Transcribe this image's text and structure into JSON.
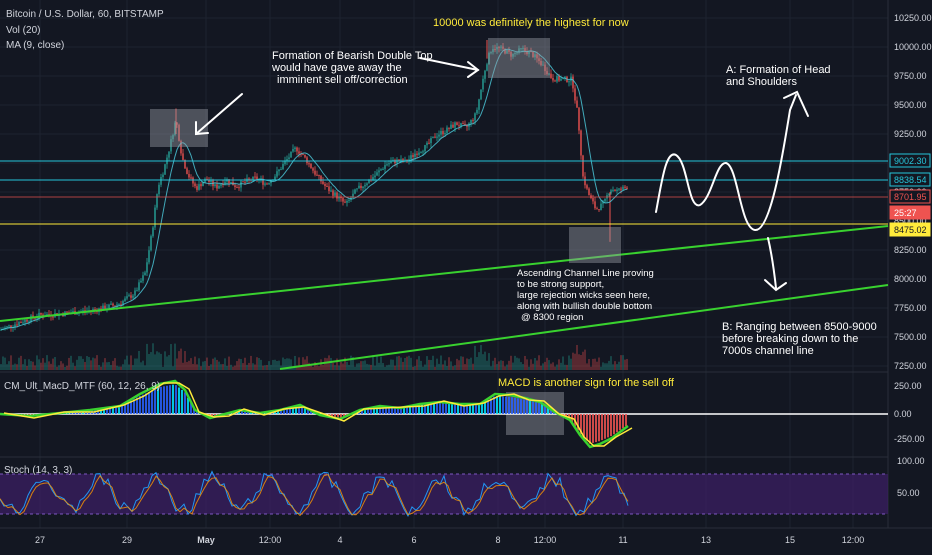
{
  "header": {
    "symbol": "Bitcoin / U.S. Dollar, 60, BITSTAMP",
    "indicators": [
      "Vol (20)",
      "MA (9, close)"
    ]
  },
  "annotations": {
    "top_title": "10000 was definitely the highest for now",
    "double_top": [
      "Formation of Bearish Double Top",
      "would have gave away the",
      "imminent sell off/correction"
    ],
    "head_shoulders": [
      "A: Formation of Head",
      "and Shoulders"
    ],
    "channel_support": [
      "Ascending Channel Line proving",
      "to be strong support,",
      "large rejection wicks seen here,",
      "along with bullish double bottom",
      "@ 8300 region"
    ],
    "ranging": [
      "B: Ranging between 8500-9000",
      "before breaking down to the",
      "7000s channel line"
    ],
    "macd_note": "MACD is another sign for the sell off"
  },
  "panes": {
    "macd_label": "CM_Ult_MacD_MTF (60, 12, 26, 9)",
    "stoch_label": "Stoch (14, 3, 3)"
  },
  "price_axis": [
    "10250.00",
    "10000.00",
    "9750.00",
    "9500.00",
    "9250.00",
    "9000.00",
    "8750.00",
    "8500.00",
    "8250.00",
    "8000.00",
    "7750.00",
    "7500.00",
    "7250.00"
  ],
  "macd_axis": [
    "250.00",
    "0.00",
    "-250.00"
  ],
  "stoch_axis": [
    "100.00",
    "50.00"
  ],
  "price_tags": [
    {
      "text": "9002.30",
      "color": "#26c6da",
      "bg": "#131722"
    },
    {
      "text": "8838.54",
      "color": "#26c6da",
      "bg": "#131722"
    },
    {
      "text": "8701.95",
      "color": "#ef5350",
      "bg": "#131722"
    },
    {
      "text": "25:27",
      "color": "#ffffff",
      "bg": "#ef5350"
    },
    {
      "text": "8475.02",
      "color": "#131722",
      "bg": "#ffeb3b"
    }
  ],
  "time_axis": [
    "27",
    "29",
    "May",
    "12:00",
    "4",
    "6",
    "8",
    "12:00",
    "11",
    "13",
    "15",
    "12:00"
  ],
  "colors": {
    "bg": "#131722",
    "up": "#26a69a",
    "down": "#ef5350",
    "cyan": "#26c6da",
    "yellow": "#ffeb3b",
    "green": "#39d22f",
    "grid": "#1e2330",
    "stoch_band": "#3b1f63"
  },
  "chart_data": {
    "type": "line",
    "series": [
      {
        "name": "BTC/USD close (approx)",
        "values": [
          [
            0,
            7560
          ],
          [
            20,
            7630
          ],
          [
            40,
            7690
          ],
          [
            60,
            7700
          ],
          [
            80,
            7720
          ],
          [
            100,
            7740
          ],
          [
            120,
            7790
          ],
          [
            135,
            7880
          ],
          [
            145,
            8050
          ],
          [
            152,
            8400
          ],
          [
            158,
            8800
          ],
          [
            164,
            8950
          ],
          [
            170,
            9150
          ],
          [
            176,
            9380
          ],
          [
            182,
            9050
          ],
          [
            188,
            8900
          ],
          [
            196,
            8780
          ],
          [
            206,
            8860
          ],
          [
            216,
            8790
          ],
          [
            226,
            8860
          ],
          [
            236,
            8800
          ],
          [
            246,
            8840
          ],
          [
            256,
            8870
          ],
          [
            266,
            8820
          ],
          [
            276,
            8900
          ],
          [
            286,
            9020
          ],
          [
            296,
            9130
          ],
          [
            306,
            9030
          ],
          [
            316,
            8900
          ],
          [
            326,
            8790
          ],
          [
            336,
            8720
          ],
          [
            346,
            8640
          ],
          [
            356,
            8760
          ],
          [
            366,
            8830
          ],
          [
            376,
            8900
          ],
          [
            386,
            8990
          ],
          [
            396,
            9020
          ],
          [
            406,
            9010
          ],
          [
            416,
            9090
          ],
          [
            426,
            9140
          ],
          [
            436,
            9240
          ],
          [
            446,
            9280
          ],
          [
            456,
            9340
          ],
          [
            466,
            9300
          ],
          [
            476,
            9420
          ],
          [
            486,
            9850
          ],
          [
            492,
            10000
          ],
          [
            502,
            9980
          ],
          [
            512,
            9930
          ],
          [
            522,
            9980
          ],
          [
            532,
            9940
          ],
          [
            542,
            9850
          ],
          [
            552,
            9730
          ],
          [
            562,
            9720
          ],
          [
            572,
            9720
          ],
          [
            578,
            9400
          ],
          [
            583,
            8880
          ],
          [
            588,
            8740
          ],
          [
            596,
            8600
          ],
          [
            604,
            8650
          ],
          [
            610,
            8780
          ],
          [
            618,
            8760
          ],
          [
            628,
            8800
          ]
        ]
      }
    ],
    "x_axis_labels": [
      "27",
      "29",
      "May",
      "12:00",
      "4",
      "6",
      "8",
      "12:00",
      "11",
      "13",
      "15",
      "12:00"
    ],
    "y_axis_labels": [
      "10250.00",
      "10000.00",
      "9750.00",
      "9500.00",
      "9250.00",
      "9000.00",
      "8750.00",
      "8500.00",
      "8250.00",
      "8000.00",
      "7750.00",
      "7500.00",
      "7250.00"
    ],
    "ylim": [
      7250,
      10250
    ],
    "levels": [
      9002.3,
      8838.54,
      8701.95,
      8475.02
    ],
    "channel_lines": [
      [
        [
          0,
          7720
        ],
        [
          932,
          8490
        ]
      ],
      [
        [
          280,
          7260
        ],
        [
          932,
          7960
        ]
      ]
    ]
  }
}
